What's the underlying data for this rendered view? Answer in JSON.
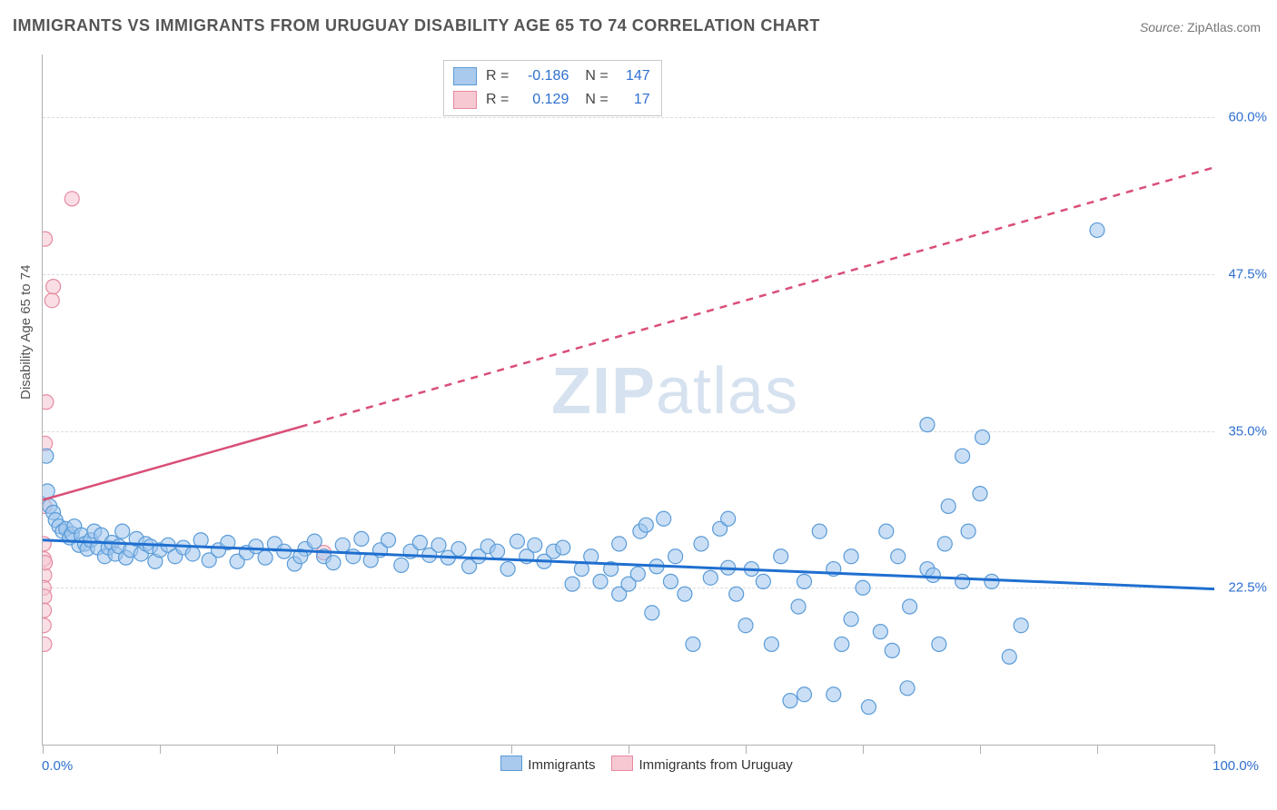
{
  "title": "IMMIGRANTS VS IMMIGRANTS FROM URUGUAY DISABILITY AGE 65 TO 74 CORRELATION CHART",
  "source_label": "Source:",
  "source_site": "ZipAtlas.com",
  "watermark_zip": "ZIP",
  "watermark_atlas": "atlas",
  "y_axis_title": "Disability Age 65 to 74",
  "chart": {
    "type": "scatter",
    "background_color": "#ffffff",
    "grid_color": "#dcdcdc",
    "axis_color": "#b0b0b0",
    "text_color": "#555555",
    "value_color": "#2f6fd0",
    "xlim": [
      0,
      100
    ],
    "ylim": [
      10,
      65
    ],
    "x_tick_positions": [
      0,
      10,
      20,
      30,
      40,
      50,
      60,
      70,
      80,
      90,
      100
    ],
    "y_gridlines": [
      22.5,
      35.0,
      47.5,
      60.0
    ],
    "y_tick_labels": [
      "22.5%",
      "35.0%",
      "47.5%",
      "60.0%"
    ],
    "x_min_label": "0.0%",
    "x_max_label": "100.0%",
    "marker_radius": 8,
    "marker_opacity": 0.55,
    "label_fontsize": 15,
    "title_fontsize": 18,
    "series": [
      {
        "name": "Immigrants",
        "fill_color": "#9fc5ec",
        "stroke_color": "#5a9bd8",
        "legend_fill": "#a9c9ed",
        "legend_stroke": "#5a9bd8",
        "R": "-0.186",
        "N": "147",
        "trend": {
          "x1": 0,
          "y1": 26.3,
          "x2": 100,
          "y2": 22.4,
          "color": "#1f6fd0",
          "width": 3,
          "dash": "none"
        },
        "points": [
          [
            0.3,
            33.0
          ],
          [
            0.4,
            30.2
          ],
          [
            0.6,
            29.0
          ],
          [
            0.9,
            28.5
          ],
          [
            1.1,
            27.9
          ],
          [
            1.4,
            27.4
          ],
          [
            1.7,
            27.0
          ],
          [
            2.0,
            27.2
          ],
          [
            2.3,
            26.5
          ],
          [
            2.5,
            26.8
          ],
          [
            2.7,
            27.4
          ],
          [
            3.1,
            25.9
          ],
          [
            3.3,
            26.7
          ],
          [
            3.6,
            26.0
          ],
          [
            3.8,
            25.6
          ],
          [
            4.1,
            26.3
          ],
          [
            4.4,
            27.0
          ],
          [
            4.7,
            25.7
          ],
          [
            5.0,
            26.7
          ],
          [
            5.3,
            25.0
          ],
          [
            5.6,
            25.7
          ],
          [
            5.9,
            26.1
          ],
          [
            6.2,
            25.2
          ],
          [
            6.5,
            25.8
          ],
          [
            6.8,
            27.0
          ],
          [
            7.1,
            24.9
          ],
          [
            7.5,
            25.5
          ],
          [
            8.0,
            26.4
          ],
          [
            8.4,
            25.2
          ],
          [
            8.8,
            26.0
          ],
          [
            9.2,
            25.8
          ],
          [
            9.6,
            24.6
          ],
          [
            10.0,
            25.5
          ],
          [
            10.7,
            25.9
          ],
          [
            11.3,
            25.0
          ],
          [
            12.0,
            25.7
          ],
          [
            12.8,
            25.2
          ],
          [
            13.5,
            26.3
          ],
          [
            14.2,
            24.7
          ],
          [
            15.0,
            25.5
          ],
          [
            15.8,
            26.1
          ],
          [
            16.6,
            24.6
          ],
          [
            17.4,
            25.3
          ],
          [
            18.2,
            25.8
          ],
          [
            19.0,
            24.9
          ],
          [
            19.8,
            26.0
          ],
          [
            20.6,
            25.4
          ],
          [
            21.5,
            24.4
          ],
          [
            22.4,
            25.6
          ],
          [
            23.2,
            26.2
          ],
          [
            24.0,
            25.0
          ],
          [
            24.8,
            24.5
          ],
          [
            25.6,
            25.9
          ],
          [
            26.5,
            25.0
          ],
          [
            27.2,
            26.4
          ],
          [
            28.0,
            24.7
          ],
          [
            28.8,
            25.5
          ],
          [
            29.5,
            26.3
          ],
          [
            22.0,
            25.0
          ],
          [
            30.6,
            24.3
          ],
          [
            31.4,
            25.4
          ],
          [
            32.2,
            26.1
          ],
          [
            33.0,
            25.1
          ],
          [
            33.8,
            25.9
          ],
          [
            34.6,
            24.9
          ],
          [
            35.5,
            25.6
          ],
          [
            36.4,
            24.2
          ],
          [
            37.2,
            25.0
          ],
          [
            38.0,
            25.8
          ],
          [
            38.8,
            25.4
          ],
          [
            39.7,
            24.0
          ],
          [
            40.5,
            26.2
          ],
          [
            41.3,
            25.0
          ],
          [
            42.0,
            25.9
          ],
          [
            42.8,
            24.6
          ],
          [
            43.6,
            25.4
          ],
          [
            44.4,
            25.7
          ],
          [
            45.2,
            22.8
          ],
          [
            46.0,
            24.0
          ],
          [
            46.8,
            25.0
          ],
          [
            47.6,
            23.0
          ],
          [
            48.5,
            24.0
          ],
          [
            49.2,
            26.0
          ],
          [
            49.2,
            22.0
          ],
          [
            50.0,
            22.8
          ],
          [
            50.8,
            23.6
          ],
          [
            51.0,
            27.0
          ],
          [
            51.5,
            27.5
          ],
          [
            52.0,
            20.5
          ],
          [
            52.4,
            24.2
          ],
          [
            53.0,
            28.0
          ],
          [
            53.6,
            23.0
          ],
          [
            54.0,
            25.0
          ],
          [
            54.8,
            22.0
          ],
          [
            55.5,
            18.0
          ],
          [
            56.2,
            26.0
          ],
          [
            57.0,
            23.3
          ],
          [
            57.8,
            27.2
          ],
          [
            58.5,
            24.1
          ],
          [
            58.5,
            28.0
          ],
          [
            59.2,
            22.0
          ],
          [
            60.0,
            19.5
          ],
          [
            60.5,
            24.0
          ],
          [
            61.5,
            23.0
          ],
          [
            62.2,
            18.0
          ],
          [
            63.0,
            25.0
          ],
          [
            63.8,
            13.5
          ],
          [
            64.5,
            21.0
          ],
          [
            65.0,
            23.0
          ],
          [
            65.0,
            14.0
          ],
          [
            66.3,
            27.0
          ],
          [
            67.5,
            14.0
          ],
          [
            67.5,
            24.0
          ],
          [
            68.2,
            18.0
          ],
          [
            69.0,
            25.0
          ],
          [
            69.0,
            20.0
          ],
          [
            70.0,
            22.5
          ],
          [
            70.5,
            13.0
          ],
          [
            71.5,
            19.0
          ],
          [
            72.0,
            27.0
          ],
          [
            72.5,
            17.5
          ],
          [
            73.0,
            25.0
          ],
          [
            73.8,
            14.5
          ],
          [
            74.0,
            21.0
          ],
          [
            75.5,
            35.5
          ],
          [
            75.5,
            24.0
          ],
          [
            76.5,
            18.0
          ],
          [
            76.0,
            23.5
          ],
          [
            77.0,
            26.0
          ],
          [
            77.3,
            29.0
          ],
          [
            78.5,
            33.0
          ],
          [
            78.5,
            23.0
          ],
          [
            79.0,
            27.0
          ],
          [
            80.0,
            30.0
          ],
          [
            80.2,
            34.5
          ],
          [
            81.0,
            23.0
          ],
          [
            82.5,
            17.0
          ],
          [
            83.5,
            19.5
          ],
          [
            90.0,
            51.0
          ]
        ]
      },
      {
        "name": "Immigrants from Uruguay",
        "fill_color": "#f4c4cf",
        "stroke_color": "#e78aa0",
        "legend_fill": "#f6c8d2",
        "legend_stroke": "#e78aa0",
        "R": "0.129",
        "N": "17",
        "trend": {
          "x1": 0,
          "y1": 29.5,
          "x2": 100,
          "y2": 56.0,
          "color": "#d94f78",
          "width": 2.5,
          "dash": "solid-then-dash",
          "solid_until_x": 22
        },
        "points": [
          [
            0.2,
            50.3
          ],
          [
            0.8,
            45.4
          ],
          [
            0.9,
            46.5
          ],
          [
            2.5,
            53.5
          ],
          [
            0.3,
            37.3
          ],
          [
            0.2,
            34.0
          ],
          [
            0.15,
            29.0
          ],
          [
            0.1,
            26.0
          ],
          [
            0.1,
            24.8
          ],
          [
            0.15,
            23.5
          ],
          [
            0.1,
            22.5
          ],
          [
            0.15,
            21.8
          ],
          [
            0.12,
            20.7
          ],
          [
            0.1,
            19.5
          ],
          [
            0.15,
            18.0
          ],
          [
            0.2,
            24.5
          ],
          [
            24.0,
            25.3
          ]
        ]
      }
    ],
    "bottom_legend": [
      {
        "label": "Immigrants",
        "fill": "#a9c9ed",
        "stroke": "#5a9bd8"
      },
      {
        "label": "Immigrants from Uruguay",
        "fill": "#f6c8d2",
        "stroke": "#e78aa0"
      }
    ],
    "stats_box_border": "#c9c9c9"
  }
}
